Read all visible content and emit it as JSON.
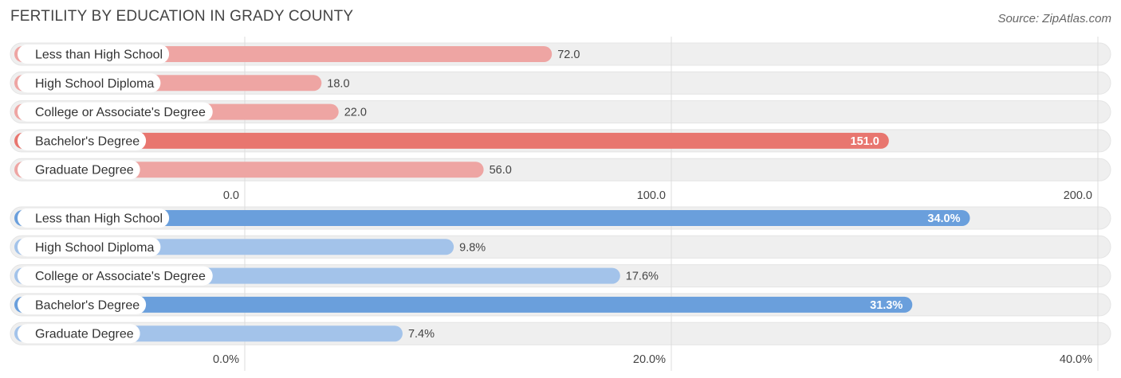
{
  "header": {
    "title": "FERTILITY BY EDUCATION IN GRADY COUNTY",
    "source": "Source: ZipAtlas.com"
  },
  "colors": {
    "top_strong": "#e8766f",
    "top_light": "#eea5a3",
    "bottom_strong": "#6a9fdc",
    "bottom_light": "#a3c3ea",
    "track": "#efefef",
    "grid": "#dddddd"
  },
  "chart_data": [
    {
      "type": "bar",
      "orientation": "horizontal",
      "categories": [
        "Less than High School",
        "High School Diploma",
        "College or Associate's Degree",
        "Bachelor's Degree",
        "Graduate Degree"
      ],
      "values": [
        72.0,
        18.0,
        22.0,
        151.0,
        56.0
      ],
      "value_labels": [
        "72.0",
        "18.0",
        "22.0",
        "151.0",
        "56.0"
      ],
      "xlim": [
        0,
        200
      ],
      "tick_labels": [
        "0.0",
        "100.0",
        "200.0"
      ],
      "tick_values": [
        0,
        100,
        200
      ],
      "highlight": [
        3
      ],
      "grid": true
    },
    {
      "type": "bar",
      "orientation": "horizontal",
      "categories": [
        "Less than High School",
        "High School Diploma",
        "College or Associate's Degree",
        "Bachelor's Degree",
        "Graduate Degree"
      ],
      "values": [
        34.0,
        9.8,
        17.6,
        31.3,
        7.4
      ],
      "value_labels": [
        "34.0%",
        "9.8%",
        "17.6%",
        "31.3%",
        "7.4%"
      ],
      "xlim": [
        0,
        40
      ],
      "tick_labels": [
        "0.0%",
        "20.0%",
        "40.0%"
      ],
      "tick_values": [
        0,
        20,
        40
      ],
      "highlight": [
        0,
        3
      ],
      "grid": true
    }
  ]
}
